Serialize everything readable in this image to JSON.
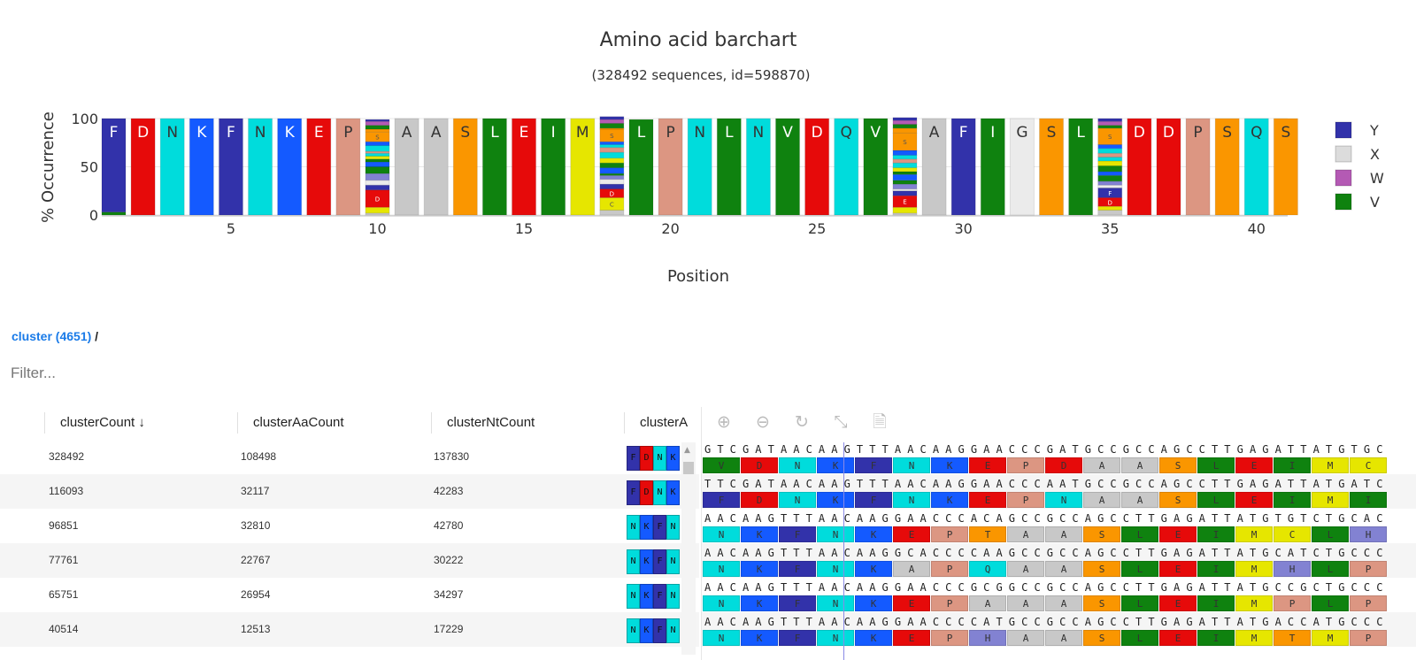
{
  "chart_data": {
    "type": "bar",
    "title": "Amino acid barchart",
    "subtitle": "(328492 sequences, id=598870)",
    "xlabel": "Position",
    "ylabel": "% Occurrence",
    "ylim": [
      0,
      100
    ],
    "yticks": [
      "0",
      "50",
      "100"
    ],
    "xticks": [
      "5",
      "10",
      "15",
      "20",
      "25",
      "30",
      "35",
      "40"
    ],
    "legend": [
      "Y",
      "X",
      "W",
      "V"
    ],
    "legend_position": "right",
    "positions": [
      [
        [
          "V",
          3
        ],
        [
          "F",
          97
        ]
      ],
      [
        [
          "D",
          100
        ]
      ],
      [
        [
          "N",
          100
        ]
      ],
      [
        [
          "K",
          100
        ]
      ],
      [
        [
          "F",
          100
        ]
      ],
      [
        [
          "N",
          100
        ]
      ],
      [
        [
          "K",
          100
        ]
      ],
      [
        [
          "E",
          100
        ]
      ],
      [
        [
          "P",
          100
        ]
      ],
      [
        [
          "A",
          2
        ],
        [
          "C",
          6
        ],
        [
          "D",
          18
        ],
        [
          "F",
          5
        ],
        [
          "G",
          5
        ],
        [
          "H",
          7
        ],
        [
          "I",
          7
        ],
        [
          "K",
          5
        ],
        [
          "L",
          3
        ],
        [
          "M",
          3
        ],
        [
          "N",
          3
        ],
        [
          "P",
          2
        ],
        [
          "Q",
          6
        ],
        [
          "R",
          4
        ],
        [
          "S",
          10
        ],
        [
          "T",
          3
        ],
        [
          "V",
          4
        ],
        [
          "W",
          4
        ],
        [
          "Y",
          2
        ]
      ],
      [
        [
          "A",
          100
        ]
      ],
      [
        [
          "A",
          100
        ]
      ],
      [
        [
          "S",
          100
        ]
      ],
      [
        [
          "L",
          100
        ]
      ],
      [
        [
          "E",
          100
        ]
      ],
      [
        [
          "I",
          100
        ]
      ],
      [
        [
          "M",
          100
        ]
      ],
      [
        [
          "A",
          5
        ],
        [
          "C",
          13
        ],
        [
          "D",
          9
        ],
        [
          "F",
          5
        ],
        [
          "G",
          5
        ],
        [
          "H",
          4
        ],
        [
          "I",
          2
        ],
        [
          "K",
          6
        ],
        [
          "L",
          5
        ],
        [
          "M",
          5
        ],
        [
          "N",
          6
        ],
        [
          "P",
          5
        ],
        [
          "Q",
          3
        ],
        [
          "R",
          3
        ],
        [
          "S",
          13
        ],
        [
          "T",
          1
        ],
        [
          "V",
          5
        ],
        [
          "W",
          4
        ],
        [
          "Y",
          3
        ]
      ],
      [
        [
          "L",
          99
        ]
      ],
      [
        [
          "P",
          100
        ]
      ],
      [
        [
          "N",
          100
        ]
      ],
      [
        [
          "L",
          100
        ]
      ],
      [
        [
          "N",
          100
        ]
      ],
      [
        [
          "V",
          100
        ]
      ],
      [
        [
          "D",
          100
        ]
      ],
      [
        [
          "Q",
          100
        ]
      ],
      [
        [
          "V",
          100
        ]
      ],
      [
        [
          "A",
          2
        ],
        [
          "C",
          6
        ],
        [
          "E",
          12
        ],
        [
          "F",
          5
        ],
        [
          "G",
          2
        ],
        [
          "H",
          5
        ],
        [
          "I",
          4
        ],
        [
          "K",
          6
        ],
        [
          "L",
          3
        ],
        [
          "M",
          4
        ],
        [
          "N",
          5
        ],
        [
          "P",
          4
        ],
        [
          "Q",
          4
        ],
        [
          "R",
          5
        ],
        [
          "S",
          18
        ],
        [
          "T",
          5
        ],
        [
          "V",
          4
        ],
        [
          "W",
          4
        ],
        [
          "Y",
          3
        ]
      ],
      [
        [
          "A",
          100
        ]
      ],
      [
        [
          "F",
          100
        ]
      ],
      [
        [
          "I",
          100
        ]
      ],
      [
        [
          "G",
          100
        ]
      ],
      [
        [
          "S",
          100
        ]
      ],
      [
        [
          "L",
          100
        ]
      ],
      [
        [
          "A",
          5
        ],
        [
          "C",
          4
        ],
        [
          "D",
          9
        ],
        [
          "F",
          10
        ],
        [
          "G",
          3
        ],
        [
          "H",
          4
        ],
        [
          "I",
          6
        ],
        [
          "K",
          4
        ],
        [
          "L",
          6
        ],
        [
          "M",
          5
        ],
        [
          "N",
          4
        ],
        [
          "P",
          4
        ],
        [
          "Q",
          5
        ],
        [
          "R",
          4
        ],
        [
          "S",
          17
        ],
        [
          "V",
          3
        ],
        [
          "W",
          4
        ],
        [
          "Y",
          3
        ]
      ],
      [
        [
          "D",
          100
        ]
      ],
      [
        [
          "D",
          100
        ]
      ],
      [
        [
          "P",
          100
        ]
      ],
      [
        [
          "S",
          100
        ]
      ],
      [
        [
          "Q",
          100
        ]
      ],
      [
        [
          "S",
          100
        ]
      ]
    ]
  },
  "colors": {
    "A": "#c8c8c8",
    "C": "#e6e600",
    "D": "#e60a0a",
    "E": "#e60a0a",
    "F": "#3232aa",
    "G": "#ebebeb",
    "H": "#8282d2",
    "I": "#0f820f",
    "K": "#145aff",
    "L": "#0f820f",
    "M": "#e6e600",
    "N": "#00dcdc",
    "P": "#dc9682",
    "Q": "#00dcdc",
    "R": "#145aff",
    "S": "#fa9600",
    "T": "#fa9600",
    "V": "#0f820f",
    "W": "#b45ab4",
    "Y": "#3232aa",
    "X": "#dcdcdc"
  },
  "breadcrumb": {
    "link": "cluster (4651)",
    "sep": " /"
  },
  "filter": {
    "placeholder": "Filter..."
  },
  "table": {
    "headers": [
      "clusterCount ↓",
      "clusterAaCount",
      "clusterNtCount",
      "clusterA"
    ],
    "rows": [
      {
        "c": "328492",
        "aa": "108498",
        "nt": "137830",
        "mini": "FDNK"
      },
      {
        "c": "116093",
        "aa": "32117",
        "nt": "42283",
        "mini": "FDNK"
      },
      {
        "c": "96851",
        "aa": "32810",
        "nt": "42780",
        "mini": "NKFN"
      },
      {
        "c": "77761",
        "aa": "22767",
        "nt": "30222",
        "mini": "NKFN"
      },
      {
        "c": "65751",
        "aa": "26954",
        "nt": "34297",
        "mini": "NKFN"
      },
      {
        "c": "40514",
        "aa": "12513",
        "nt": "17229",
        "mini": "NKFN"
      }
    ]
  },
  "toolbar": {
    "icons": [
      "zoom-in-icon",
      "zoom-out-icon",
      "reset-icon",
      "collapse-icon",
      "export-icon"
    ]
  },
  "alignment": [
    {
      "nt": "GTCGATAACAAGTTTAACAAGGAACCCGATGCCGCCAGCCTTGAGATTATGTGC",
      "aa": "VDNKFNKEPDAASLEIMC"
    },
    {
      "nt": "TTCGATAACAAGTTTAACAAGGAACCCAATGCCGCCAGCCTTGAGATTATGATC",
      "aa": "FDNKFNKEPNAASLEIMI"
    },
    {
      "nt": "AACAAGTTTAACAAGGAACCCACAGCCGCCAGCCTTGAGATTATGTGTCTGCAC",
      "aa": "NKFNKEPTAASLEIMCLH"
    },
    {
      "nt": "AACAAGTTTAACAAGGCACCCCAAGCCGCCAGCCTTGAGATTATGCATCTGCCC",
      "aa": "NKFNKAPQAASLEIMHLP"
    },
    {
      "nt": "AACAAGTTTAACAAGGAACCCGCGGCCGCCAGCCTTGAGATTATGCCGCTGCCC",
      "aa": "NKFNKEPAAASLEIMPLP"
    },
    {
      "nt": "AACAAGTTTAACAAGGAACCCCATGCCGCCAGCCTTGAGATTATGACCATGCCC",
      "aa": "NKFNKEPHAASLEIMTMP"
    }
  ]
}
